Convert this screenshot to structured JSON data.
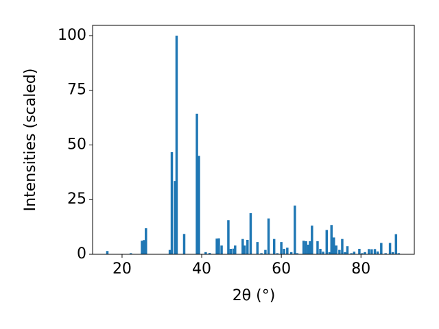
{
  "chart_data": {
    "type": "bar",
    "xlabel": "2θ (°)",
    "ylabel": "Intensities (scaled)",
    "color": "#1f77b4",
    "x": [
      16.3,
      22.2,
      25,
      25.5,
      26,
      32,
      32.5,
      33.3,
      33.7,
      35.6,
      38.8,
      39.3,
      41,
      42,
      43.8,
      44.3,
      45,
      46.7,
      47.3,
      48,
      48.4,
      50.3,
      50.8,
      51.5,
      52.3,
      54,
      55,
      56,
      56.8,
      58.2,
      59,
      60,
      60.7,
      61.5,
      62.5,
      63.4,
      64,
      65.6,
      66.2,
      66.8,
      67.2,
      67.7,
      69.1,
      69.8,
      70.5,
      71.4,
      72.1,
      72.6,
      73.2,
      73.8,
      74.6,
      75.3,
      76,
      76.6,
      77.6,
      78.3,
      79.6,
      80.3,
      81,
      82,
      82.7,
      83.5,
      84.2,
      85.1,
      86.2,
      87.3,
      88,
      88.8,
      89.5
    ],
    "values": [
      1.5,
      0.5,
      6.2,
      6.5,
      11.9,
      2,
      46.7,
      33.5,
      100,
      9.3,
      64.3,
      45,
      1,
      0.6,
      7.2,
      7.3,
      4,
      15.6,
      2.5,
      2.6,
      4,
      7,
      4,
      6.6,
      18.8,
      5.6,
      0.5,
      2,
      16.4,
      7,
      0.5,
      5.6,
      2.5,
      3,
      1,
      22.3,
      0.5,
      6.2,
      6,
      4.4,
      6,
      13.1,
      6,
      2.5,
      1.2,
      11.1,
      1,
      13.4,
      7.7,
      4,
      2,
      7,
      1,
      3.7,
      0.5,
      1.2,
      2.5,
      0.5,
      1,
      2.4,
      2.3,
      2.4,
      1.3,
      5.2,
      0.5,
      5.2,
      1,
      9.2,
      0.5
    ],
    "xlim": [
      12.6,
      93.4
    ],
    "ylim": [
      0,
      104.7
    ],
    "xticks": [
      20,
      40,
      60,
      80
    ],
    "yticks": [
      0,
      25,
      50,
      75,
      100
    ]
  }
}
